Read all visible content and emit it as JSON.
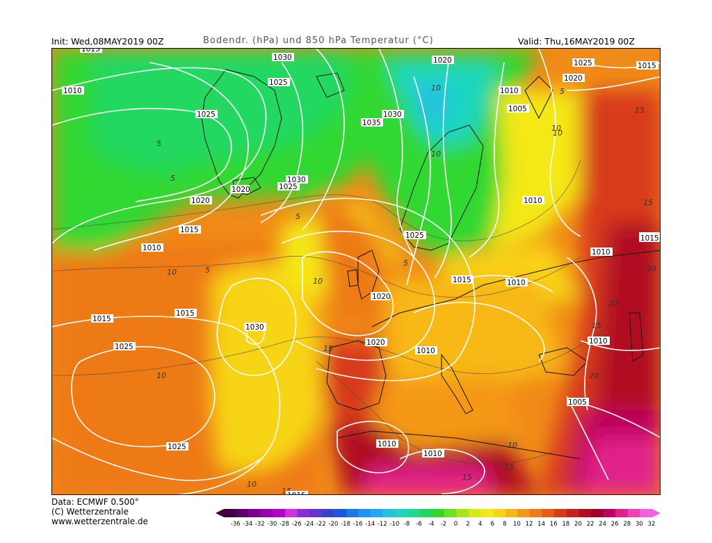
{
  "header": {
    "init": "Init: Wed,08MAY2019 00Z",
    "title": "Bodendr. (hPa) und 850 hPa Temperatur (°C)",
    "valid": "Valid: Thu,16MAY2019 00Z"
  },
  "footer": {
    "data_line": "Data: ECMWF  0.500°",
    "copyright": "(C) Wetterzentrale",
    "url": "www.wetterzentrale.de"
  },
  "isobar_labels": [
    "1015",
    "1030",
    "1020",
    "1025",
    "1010",
    "1025",
    "1010",
    "1005",
    "1030",
    "1035",
    "1025",
    "1020",
    "1015",
    "1020",
    "1025",
    "1030",
    "1020",
    "1010",
    "1010",
    "1015",
    "1025",
    "1015",
    "1010",
    "1015",
    "1015",
    "1030",
    "1020",
    "1015",
    "1010",
    "1020",
    "1025",
    "1025",
    "1010",
    "1010",
    "1005",
    "1015",
    "1015",
    "1010",
    "1010"
  ],
  "temp_labels": [
    "5",
    "5",
    "5",
    "10",
    "5",
    "10",
    "10",
    "10",
    "15",
    "5",
    "10",
    "10",
    "5",
    "15",
    "15",
    "10",
    "20",
    "20",
    "15",
    "20",
    "15",
    "15",
    "10",
    "10",
    "15"
  ],
  "colorbar": {
    "ticks": [
      "-36",
      "-34",
      "-32",
      "-30",
      "-28",
      "-26",
      "-24",
      "-22",
      "-20",
      "-18",
      "-16",
      "-14",
      "-12",
      "-10",
      "-8",
      "-6",
      "-4",
      "-2",
      "0",
      "2",
      "4",
      "6",
      "8",
      "10",
      "12",
      "14",
      "16",
      "18",
      "20",
      "22",
      "24",
      "26",
      "28",
      "30",
      "32"
    ],
    "colors": [
      "#3d0040",
      "#580066",
      "#7a0090",
      "#9a00b0",
      "#b800cc",
      "#cc33dd",
      "#8a2be2",
      "#6633cc",
      "#3344cc",
      "#2255dd",
      "#1a7ae0",
      "#1e90ff",
      "#22aaee",
      "#22c4e0",
      "#1ed6c0",
      "#20d890",
      "#20d860",
      "#30d830",
      "#6ee020",
      "#a8e41a",
      "#d8e818",
      "#f4e818",
      "#f8d418",
      "#f8b818",
      "#f49818",
      "#ee7a18",
      "#e85a18",
      "#d83a1a",
      "#c81e1e",
      "#b01020",
      "#a00030",
      "#c00060",
      "#e0208a",
      "#f040b8",
      "#f060e0"
    ]
  }
}
